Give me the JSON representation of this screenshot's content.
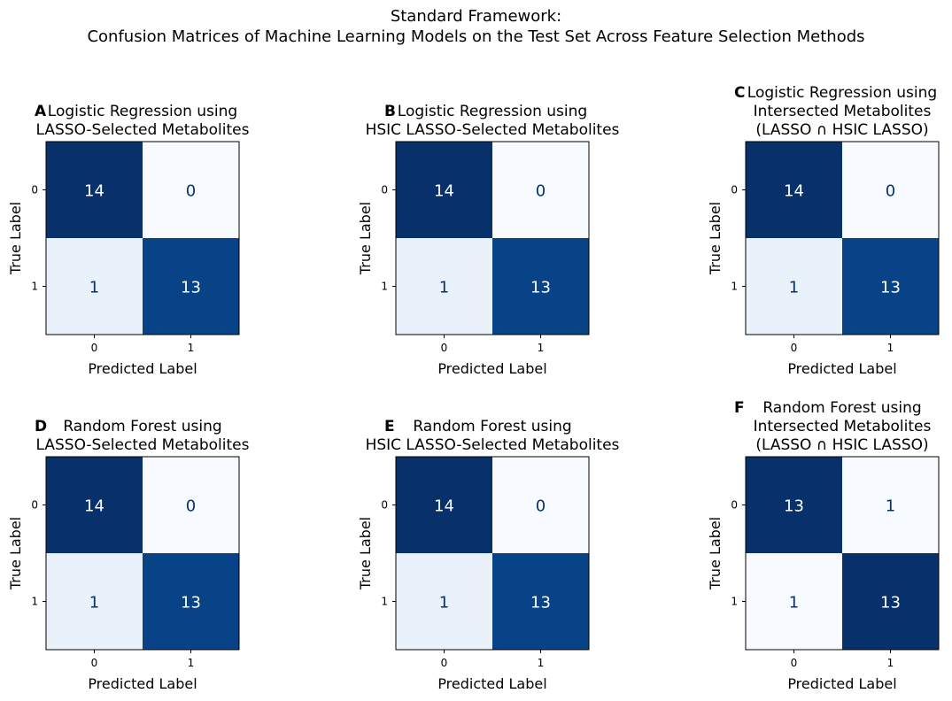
{
  "figure": {
    "title_line1": "Standard Framework:",
    "title_line2": "Confusion Matrices of Machine Learning Models on the Test Set Across Feature Selection Methods"
  },
  "colors": {
    "blues_dark": "#08306b",
    "blues_light": "#f7fbff",
    "text_on_dark": "#ffffff",
    "text_on_light": "#08306b"
  },
  "chart_data": [
    {
      "type": "heatmap",
      "panel_label": "A",
      "title_lines": [
        "Logistic Regression using",
        "LASSO-Selected Metabolites"
      ],
      "xlabel": "Predicted Label",
      "ylabel": "True Label",
      "x_ticks": [
        "0",
        "1"
      ],
      "y_ticks": [
        "0",
        "1"
      ],
      "matrix": [
        [
          14,
          0
        ],
        [
          1,
          13
        ]
      ],
      "colormap": "Blues",
      "colorbar": false
    },
    {
      "type": "heatmap",
      "panel_label": "B",
      "title_lines": [
        "Logistic Regression using",
        "HSIC LASSO-Selected Metabolites"
      ],
      "xlabel": "Predicted Label",
      "ylabel": "True Label",
      "x_ticks": [
        "0",
        "1"
      ],
      "y_ticks": [
        "0",
        "1"
      ],
      "matrix": [
        [
          14,
          0
        ],
        [
          1,
          13
        ]
      ],
      "colormap": "Blues",
      "colorbar": false
    },
    {
      "type": "heatmap",
      "panel_label": "C",
      "title_lines": [
        "Logistic Regression using",
        "Intersected Metabolites",
        "(LASSO ∩ HSIC LASSO)"
      ],
      "xlabel": "Predicted Label",
      "ylabel": "True Label",
      "x_ticks": [
        "0",
        "1"
      ],
      "y_ticks": [
        "0",
        "1"
      ],
      "matrix": [
        [
          14,
          0
        ],
        [
          1,
          13
        ]
      ],
      "colormap": "Blues",
      "colorbar": false
    },
    {
      "type": "heatmap",
      "panel_label": "D",
      "title_lines": [
        "Random Forest using",
        "LASSO-Selected Metabolites"
      ],
      "xlabel": "Predicted Label",
      "ylabel": "True Label",
      "x_ticks": [
        "0",
        "1"
      ],
      "y_ticks": [
        "0",
        "1"
      ],
      "matrix": [
        [
          14,
          0
        ],
        [
          1,
          13
        ]
      ],
      "colormap": "Blues",
      "colorbar": false
    },
    {
      "type": "heatmap",
      "panel_label": "E",
      "title_lines": [
        "Random Forest using",
        "HSIC LASSO-Selected Metabolites"
      ],
      "xlabel": "Predicted Label",
      "ylabel": "True Label",
      "x_ticks": [
        "0",
        "1"
      ],
      "y_ticks": [
        "0",
        "1"
      ],
      "matrix": [
        [
          14,
          0
        ],
        [
          1,
          13
        ]
      ],
      "colormap": "Blues",
      "colorbar": false
    },
    {
      "type": "heatmap",
      "panel_label": "F",
      "title_lines": [
        "Random Forest using",
        "Intersected Metabolites",
        "(LASSO ∩ HSIC LASSO)"
      ],
      "xlabel": "Predicted Label",
      "ylabel": "True Label",
      "x_ticks": [
        "0",
        "1"
      ],
      "y_ticks": [
        "0",
        "1"
      ],
      "matrix": [
        [
          13,
          1
        ],
        [
          1,
          13
        ]
      ],
      "colormap": "Blues",
      "colorbar": false
    }
  ]
}
